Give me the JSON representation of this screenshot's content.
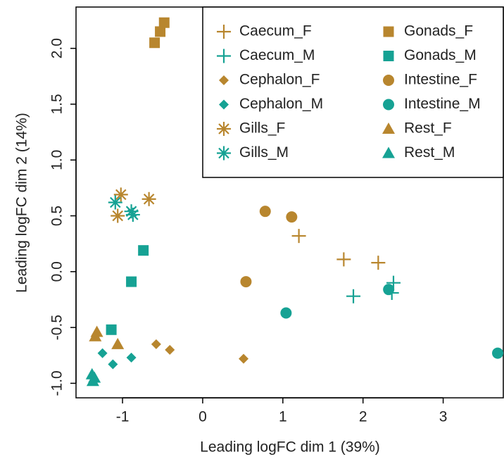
{
  "chart_data": {
    "type": "scatter",
    "xlabel": "Leading logFC dim 1 (39%)",
    "ylabel": "Leading logFC dim 2 (14%)",
    "xlim": [
      -1.58,
      3.75
    ],
    "ylim": [
      -1.13,
      2.37
    ],
    "xticks": [
      -1,
      0,
      1,
      2,
      3
    ],
    "yticks": [
      {
        "value": -1.0,
        "label": "-1.0"
      },
      -0.5,
      {
        "value": 0.0,
        "label": "0.0"
      },
      0.5,
      {
        "value": 1.0,
        "label": "1.0"
      },
      1.5,
      {
        "value": 2.0,
        "label": "2.0"
      }
    ],
    "legend": "top-right",
    "series": [
      {
        "name": "Caecum_F",
        "color": "#b8862e",
        "marker": "plus",
        "x": [
          1.2,
          1.76,
          2.19
        ],
        "values": [
          0.32,
          0.11,
          0.08
        ]
      },
      {
        "name": "Caecum_M",
        "color": "#16a294",
        "marker": "plus",
        "x": [
          1.88,
          2.38,
          2.36
        ],
        "values": [
          -0.22,
          -0.1,
          -0.19
        ]
      },
      {
        "name": "Cephalon_F",
        "color": "#b8862e",
        "marker": "diamond",
        "x": [
          -0.58,
          -0.41,
          0.51
        ],
        "values": [
          -0.65,
          -0.7,
          -0.78
        ]
      },
      {
        "name": "Cephalon_M",
        "color": "#16a294",
        "marker": "diamond",
        "x": [
          -1.25,
          -1.12,
          -0.89
        ],
        "values": [
          -0.73,
          -0.83,
          -0.77
        ]
      },
      {
        "name": "Gills_F",
        "color": "#b8862e",
        "marker": "star",
        "x": [
          -1.02,
          -1.06,
          -0.67
        ],
        "values": [
          0.69,
          0.5,
          0.65
        ]
      },
      {
        "name": "Gills_M",
        "color": "#16a294",
        "marker": "star",
        "x": [
          -1.09,
          -0.89,
          -0.87
        ],
        "values": [
          0.62,
          0.54,
          0.51
        ]
      },
      {
        "name": "Gonads_F",
        "color": "#b8862e",
        "marker": "square",
        "x": [
          -0.6,
          -0.53,
          -0.48
        ],
        "values": [
          2.05,
          2.15,
          2.23
        ]
      },
      {
        "name": "Gonads_M",
        "color": "#16a294",
        "marker": "square",
        "x": [
          -0.74,
          -0.89,
          -1.14
        ],
        "values": [
          0.19,
          -0.09,
          -0.52
        ]
      },
      {
        "name": "Intestine_F",
        "color": "#b8862e",
        "marker": "circle",
        "x": [
          0.78,
          1.11,
          0.54
        ],
        "values": [
          0.54,
          0.49,
          -0.09
        ]
      },
      {
        "name": "Intestine_M",
        "color": "#16a294",
        "marker": "circle",
        "x": [
          1.04,
          2.32,
          3.68
        ],
        "values": [
          -0.37,
          -0.16,
          -0.73
        ]
      },
      {
        "name": "Rest_F",
        "color": "#b8862e",
        "marker": "triangle",
        "x": [
          -1.32,
          -1.34,
          -1.06
        ],
        "values": [
          -0.54,
          -0.58,
          -0.65
        ]
      },
      {
        "name": "Rest_M",
        "color": "#16a294",
        "marker": "triangle",
        "x": [
          -1.38,
          -1.37,
          -1.35
        ],
        "values": [
          -0.92,
          -0.98,
          -0.95
        ]
      }
    ]
  }
}
